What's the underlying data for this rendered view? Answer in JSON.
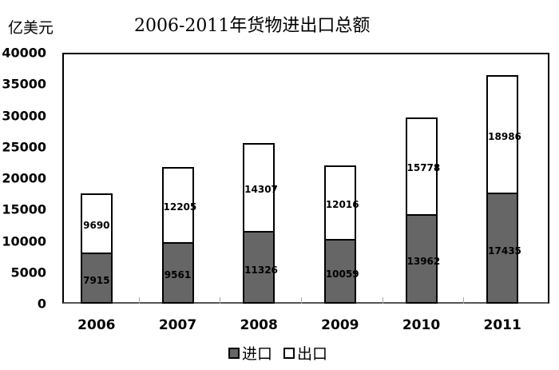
{
  "title": "2006-2011年货物进出口总额",
  "unit": "亿美元",
  "legend": {
    "import_label": "进口",
    "export_label": "出口"
  },
  "colors": {
    "import": "#666666",
    "export": "#ffffff"
  },
  "y_ticks": [
    "40000",
    "35000",
    "30000",
    "25000",
    "20000",
    "15000",
    "10000",
    "5000",
    "0"
  ],
  "chart_data": {
    "type": "bar",
    "stacked": true,
    "title": "2006-2011年货物进出口总额",
    "xlabel": "",
    "ylabel": "亿美元",
    "ylim": [
      0,
      40000
    ],
    "categories": [
      "2006",
      "2007",
      "2008",
      "2009",
      "2010",
      "2011"
    ],
    "series": [
      {
        "name": "进口",
        "values": [
          7915,
          9561,
          11326,
          10059,
          13962,
          17435
        ]
      },
      {
        "name": "出口",
        "values": [
          9690,
          12205,
          14307,
          12016,
          15778,
          18986
        ]
      }
    ],
    "legend_position": "bottom",
    "grid": false
  }
}
